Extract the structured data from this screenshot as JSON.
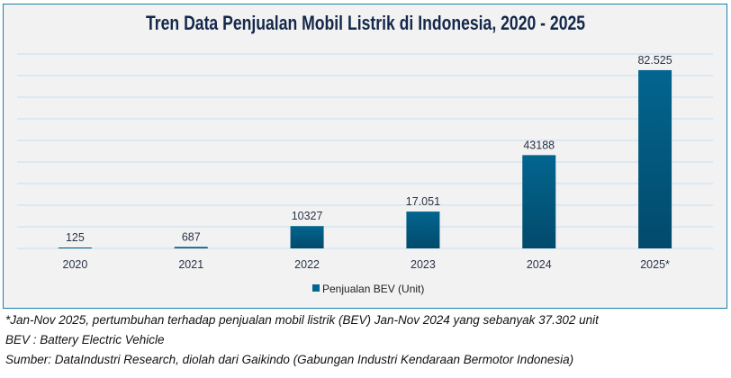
{
  "chart_data": {
    "type": "bar",
    "title": "Tren Data Penjualan Mobil Listrik di Indonesia, 2020 - 2025",
    "categories": [
      "2020",
      "2021",
      "2022",
      "2023",
      "2024",
      "2025*"
    ],
    "series": [
      {
        "name": "Penjualan BEV (Unit)",
        "values": [
          125,
          687,
          10327,
          17051,
          43188,
          82525
        ],
        "labels": [
          "125",
          "687",
          "10327",
          "17.051",
          "43188",
          "82.525"
        ]
      }
    ],
    "ylim": [
      0,
      90000
    ],
    "ygrid_step": 10000,
    "grid": true,
    "y_axis_labels_shown": false,
    "legend_position": "bottom",
    "colors": {
      "bar_top": "#03658f",
      "bar_bottom": "#024a6b",
      "grid": "#c5def2",
      "border": "#1a7fb0",
      "background": "#f2f2f2"
    }
  },
  "footnotes": [
    "*Jan-Nov 2025, pertumbuhan terhadap penjualan mobil listrik (BEV) Jan-Nov 2024 yang sebanyak 37.302 unit",
    "BEV : Battery Electric Vehicle",
    "Sumber: DataIndustri Research, diolah dari Gaikindo (Gabungan Industri Kendaraan Bermotor Indonesia)"
  ]
}
